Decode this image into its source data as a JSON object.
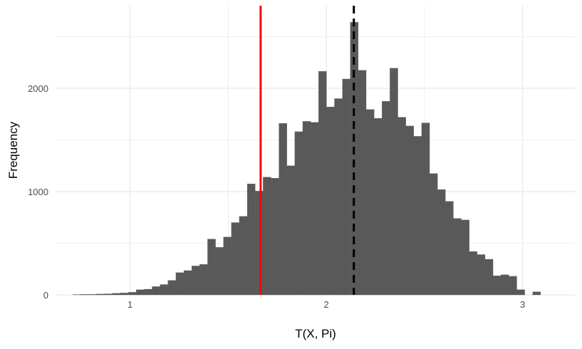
{
  "chart_data": {
    "type": "bar",
    "subtype": "histogram",
    "title": "",
    "xlabel": "T(X, Pi)",
    "ylabel": "Frequency",
    "xlim": [
      0.62,
      3.27
    ],
    "ylim": [
      0,
      2800
    ],
    "x_ticks": [
      1,
      2,
      3
    ],
    "y_ticks": [
      0,
      1000,
      2000
    ],
    "x_tick_labels": [
      "1",
      "2",
      "3"
    ],
    "y_tick_labels": [
      "0",
      "1000",
      "2000"
    ],
    "grid": true,
    "bin_width": 0.0404,
    "bins_start": 0.708,
    "values": [
      3,
      5,
      5,
      8,
      10,
      15,
      18,
      25,
      50,
      55,
      80,
      100,
      140,
      215,
      235,
      280,
      295,
      540,
      460,
      560,
      700,
      760,
      1075,
      1005,
      1140,
      1130,
      1660,
      1250,
      1580,
      1680,
      1670,
      2165,
      1820,
      1900,
      2090,
      2640,
      2175,
      1795,
      1710,
      1875,
      2195,
      1720,
      1635,
      1535,
      1665,
      1175,
      1020,
      905,
      740,
      725,
      420,
      390,
      345,
      185,
      195,
      180,
      50,
      0,
      30
    ],
    "bar_color": "#595959",
    "reference_lines": [
      {
        "x": 1.665,
        "color": "#ff0000",
        "style": "solid"
      },
      {
        "x": 2.14,
        "color": "#000000",
        "style": "dashed"
      }
    ],
    "background": "#ffffff",
    "grid_color": "#ebebeb"
  }
}
